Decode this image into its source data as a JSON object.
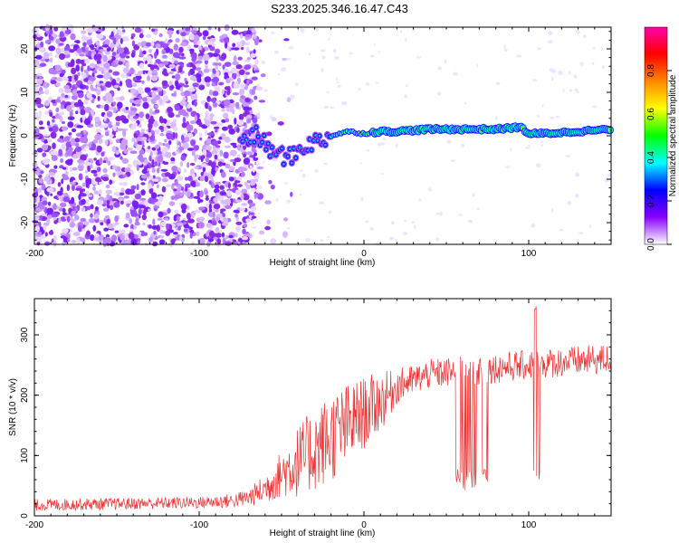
{
  "title": "S233.2025.346.16.47.C43",
  "chart_data": [
    {
      "type": "heatmap",
      "xlabel": "Height of straight line (km)",
      "ylabel": "Frequency (Hz)",
      "xlim": [
        -200,
        150
      ],
      "ylim": [
        -25,
        25
      ],
      "xticks": [
        -200,
        -100,
        0,
        100
      ],
      "yticks": [
        -20,
        -10,
        0,
        10,
        20
      ],
      "colorbar": {
        "label": "Normalized spectral amplitude",
        "range": [
          0,
          1
        ],
        "ticks": [
          "0.0",
          "0.2",
          "0.4",
          "0.6",
          "0.8"
        ],
        "colors": [
          "#ffffff",
          "#8800ff",
          "#0000ff",
          "#00ffff",
          "#00ff00",
          "#ffff00",
          "#ff8800",
          "#ff0000",
          "#ff00aa"
        ]
      },
      "ridge": {
        "x": [
          -75,
          -65,
          -55,
          -45,
          -35,
          -25,
          -20,
          -10,
          0,
          10,
          20,
          40,
          60,
          80,
          95,
          100,
          110,
          130,
          150
        ],
        "y": [
          -1,
          0,
          -4,
          -5,
          -2,
          -1,
          0,
          1,
          0.5,
          1,
          1,
          1.5,
          1.5,
          1.5,
          2,
          0.5,
          0.5,
          1,
          1.5
        ]
      },
      "noise_region_x": [
        -200,
        -65
      ]
    },
    {
      "type": "line",
      "xlabel": "Height of straight line (km)",
      "ylabel": "SNR (10 * v/v)",
      "xlim": [
        -200,
        150
      ],
      "ylim": [
        0,
        360
      ],
      "xticks": [
        -200,
        -100,
        0,
        100
      ],
      "yticks": [
        0,
        100,
        200,
        300
      ],
      "color": "#ee3333",
      "envelope": {
        "x": [
          -200,
          -150,
          -100,
          -80,
          -70,
          -60,
          -50,
          -40,
          -30,
          -20,
          -10,
          0,
          10,
          15,
          20,
          30,
          40,
          60,
          80,
          100,
          120,
          150
        ],
        "mean": [
          18,
          20,
          22,
          25,
          30,
          45,
          70,
          90,
          110,
          130,
          150,
          170,
          190,
          200,
          215,
          225,
          235,
          240,
          245,
          250,
          255,
          260
        ],
        "spread": [
          10,
          10,
          10,
          12,
          15,
          25,
          40,
          60,
          70,
          75,
          70,
          60,
          50,
          40,
          30,
          25,
          25,
          25,
          25,
          25,
          25,
          25
        ]
      },
      "dips": [
        {
          "x": 58,
          "y": 50
        },
        {
          "x": 62,
          "y": 40
        },
        {
          "x": 66,
          "y": 45
        },
        {
          "x": 73,
          "y": 55
        },
        {
          "x": 105,
          "y": 60
        }
      ],
      "peak": {
        "x": 104,
        "y": 350
      }
    }
  ]
}
